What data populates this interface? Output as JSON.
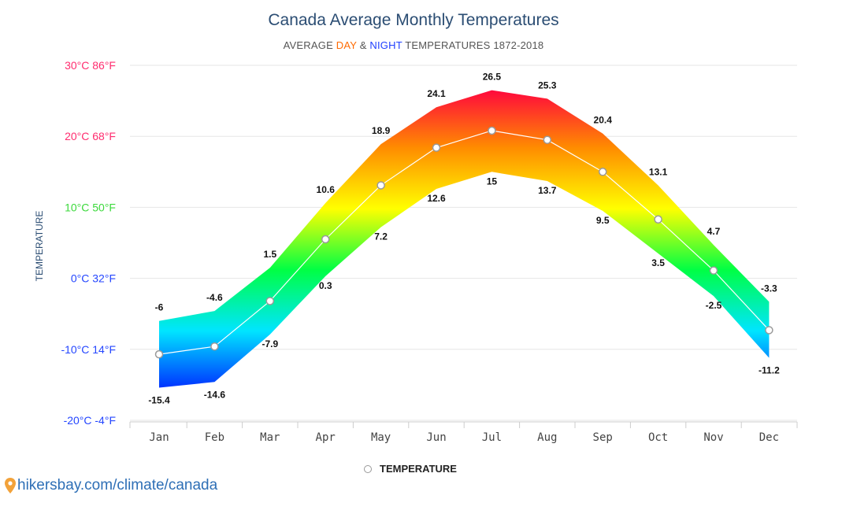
{
  "header": {
    "title": "Canada Average Monthly Temperatures",
    "subtitle_prefix": "AVERAGE",
    "subtitle_day": "DAY",
    "subtitle_and": "&",
    "subtitle_night": "NIGHT",
    "subtitle_suffix": "TEMPERATURES 1872-2018"
  },
  "legend": {
    "label": "TEMPERATURE"
  },
  "source": {
    "text": "hikersbay.com/climate/canada",
    "icon": "map-pin-icon"
  },
  "chart_data": {
    "type": "area",
    "categories": [
      "Jan",
      "Feb",
      "Mar",
      "Apr",
      "May",
      "Jun",
      "Jul",
      "Aug",
      "Sep",
      "Oct",
      "Nov",
      "Dec"
    ],
    "series": [
      {
        "name": "DAY",
        "values": [
          -6,
          -4.6,
          1.5,
          10.6,
          18.9,
          24.1,
          26.5,
          25.3,
          20.4,
          13.1,
          4.7,
          -3.3
        ]
      },
      {
        "name": "NIGHT",
        "values": [
          -15.4,
          -14.6,
          -7.9,
          0.3,
          7.2,
          12.6,
          15,
          13.7,
          9.5,
          3.5,
          -2.5,
          -11.2
        ]
      },
      {
        "name": "TEMPERATURE",
        "values": [
          -10.7,
          -9.6,
          -3.2,
          5.5,
          13.1,
          18.4,
          20.8,
          19.5,
          15,
          8.3,
          1.1,
          -7.3
        ]
      }
    ],
    "ylabel": "TEMPERATURE",
    "ylim": [
      -20,
      30
    ],
    "yticks": [
      {
        "value": 30,
        "label": "30°C 86°F",
        "color": "#ff2d6f"
      },
      {
        "value": 20,
        "label": "20°C 68°F",
        "color": "#ff2d6f"
      },
      {
        "value": 10,
        "label": "10°C 50°F",
        "color": "#3cd93c"
      },
      {
        "value": 0,
        "label": "0°C 32°F",
        "color": "#2446ff"
      },
      {
        "value": -10,
        "label": "-10°C 14°F",
        "color": "#2446ff"
      },
      {
        "value": -20,
        "label": "-20°C -4°F",
        "color": "#2446ff"
      }
    ],
    "grid": true,
    "legend_position": "bottom-center",
    "gradient_colors": [
      "#0026ff",
      "#00e5ff",
      "#00ff44",
      "#ffff00",
      "#ff8c00",
      "#ff0040"
    ],
    "line_color": "#ffffff",
    "axis_label_color": "#2b4d73"
  }
}
